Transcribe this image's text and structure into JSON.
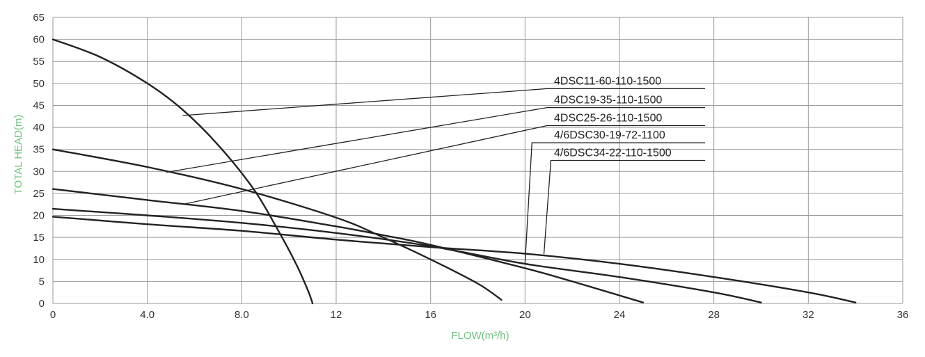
{
  "chart_data": {
    "type": "line",
    "title": "",
    "xlabel": "FLOW(m³/h)",
    "ylabel": "TOTAL HEAD(m)",
    "xlim": [
      0,
      36
    ],
    "ylim": [
      0,
      65
    ],
    "x_ticks": [
      0,
      4,
      8,
      12,
      16,
      20,
      24,
      28,
      32,
      36
    ],
    "x_tick_labels": [
      "0",
      "4.0",
      "8.0",
      "12",
      "16",
      "20",
      "24",
      "28",
      "32",
      "36"
    ],
    "y_ticks": [
      0,
      5,
      10,
      15,
      20,
      25,
      30,
      35,
      40,
      45,
      50,
      55,
      60,
      65
    ],
    "y_tick_labels": [
      "0",
      "5",
      "10",
      "15",
      "20",
      "25",
      "30",
      "35",
      "40",
      "45",
      "50",
      "55",
      "60",
      "65"
    ],
    "grid": true,
    "legend_position": "right",
    "colors": {
      "line": "#222222",
      "grid": "#999999",
      "axis_label": "#6cc17a"
    },
    "series": [
      {
        "name": "4DSC11-60-110-1500",
        "x": [
          0,
          2,
          4,
          5.5,
          7,
          8.5,
          9.5,
          10.3,
          10.8,
          11
        ],
        "y": [
          60,
          56,
          50,
          44,
          36,
          26,
          17,
          9,
          3,
          0
        ],
        "callout_anchor": [
          5.5,
          42.7
        ],
        "legend_level": 48.8
      },
      {
        "name": "4DSC19-35-110-1500",
        "x": [
          0,
          4,
          8,
          12,
          14,
          16,
          18,
          19
        ],
        "y": [
          35,
          31,
          26,
          19.5,
          15,
          10,
          4.5,
          0.8
        ],
        "callout_anchor": [
          4.8,
          29.8
        ],
        "legend_level": 44.5
      },
      {
        "name": "4DSC25-26-110-1500",
        "x": [
          0,
          4,
          8,
          12,
          14,
          16,
          20,
          22,
          25
        ],
        "y": [
          26,
          23.5,
          21,
          17.5,
          15.5,
          13.3,
          8,
          5,
          0.2
        ],
        "callout_anchor": [
          5.5,
          22.5
        ],
        "legend_level": 40.4
      },
      {
        "name": "4/6DSC30-19-72-1100",
        "x": [
          0,
          4,
          8,
          12,
          16,
          20,
          24,
          28,
          30
        ],
        "y": [
          21.5,
          20,
          18.3,
          16,
          13,
          9,
          6,
          2.5,
          0.2
        ],
        "callout_anchor": [
          20,
          9
        ],
        "legend_level": 36.5
      },
      {
        "name": "4/6DSC34-22-110-1500",
        "x": [
          0,
          4,
          8,
          12,
          16,
          20,
          24,
          28,
          32,
          34
        ],
        "y": [
          19.7,
          18,
          16.5,
          14.5,
          12.8,
          11.3,
          9,
          6,
          2.5,
          0.2
        ],
        "callout_anchor": [
          20.8,
          11.2
        ],
        "legend_level": 32.5
      }
    ]
  }
}
